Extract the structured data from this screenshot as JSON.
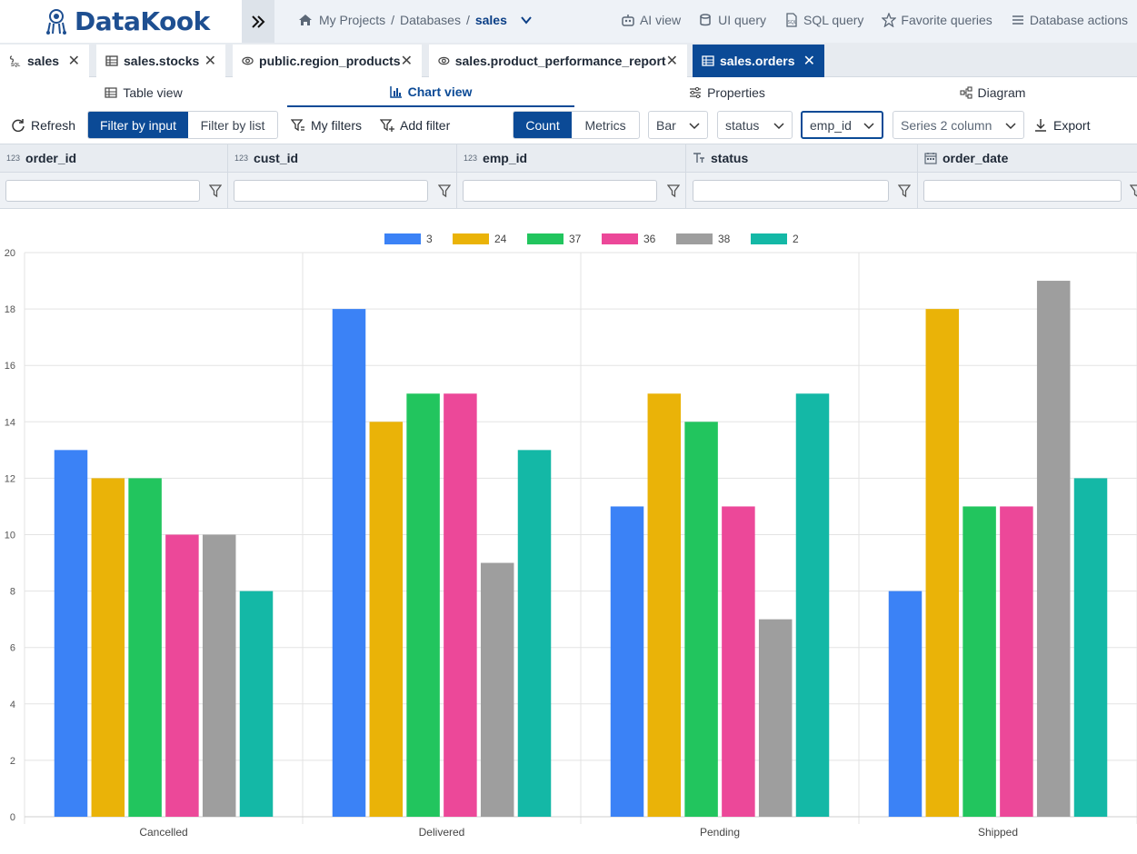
{
  "app": {
    "name": "DataKook"
  },
  "breadcrumb": {
    "projects": "My Projects",
    "databases": "Databases",
    "current": "sales"
  },
  "topnav": {
    "ai_view": "AI view",
    "ui_query": "UI query",
    "sql_query": "SQL query",
    "favorite_queries": "Favorite queries",
    "database_actions": "Database actions"
  },
  "tabs": [
    {
      "label": "sales",
      "icon": "sql-icon"
    },
    {
      "label": "sales.stocks",
      "icon": "table-icon"
    },
    {
      "label": "public.region_products",
      "icon": "view-icon"
    },
    {
      "label": "sales.product_performance_report",
      "icon": "view-icon"
    },
    {
      "label": "sales.orders",
      "icon": "table-icon",
      "active": true
    }
  ],
  "views": {
    "table": "Table view",
    "chart": "Chart view",
    "properties": "Properties",
    "diagram": "Diagram"
  },
  "toolbar": {
    "refresh": "Refresh",
    "filter_by_input": "Filter by input",
    "filter_by_list": "Filter by list",
    "my_filters": "My filters",
    "add_filter": "Add filter",
    "count": "Count",
    "metrics": "Metrics",
    "chart_type": "Bar",
    "x_column": "status",
    "series_column": "emp_id",
    "series2_placeholder": "Series 2 column",
    "export": "Export"
  },
  "columns": [
    {
      "name": "order_id",
      "type": "123"
    },
    {
      "name": "cust_id",
      "type": "123"
    },
    {
      "name": "emp_id",
      "type": "123"
    },
    {
      "name": "status",
      "type": "text"
    },
    {
      "name": "order_date",
      "type": "date"
    }
  ],
  "colors": {
    "accent": "#0b4a96",
    "logo": "#1e4f91"
  },
  "chart_data": {
    "type": "bar",
    "categories": [
      "Cancelled",
      "Delivered",
      "Pending",
      "Shipped"
    ],
    "series": [
      {
        "name": "3",
        "color": "#3b82f6",
        "values": [
          13,
          18,
          11,
          8
        ]
      },
      {
        "name": "24",
        "color": "#eab308",
        "values": [
          12,
          14,
          15,
          18
        ]
      },
      {
        "name": "37",
        "color": "#22c55e",
        "values": [
          12,
          15,
          14,
          11
        ]
      },
      {
        "name": "36",
        "color": "#ec4899",
        "values": [
          10,
          15,
          11,
          11
        ]
      },
      {
        "name": "38",
        "color": "#9e9e9e",
        "values": [
          10,
          9,
          7,
          19
        ]
      },
      {
        "name": "2",
        "color": "#14b8a6",
        "values": [
          8,
          13,
          15,
          12
        ]
      }
    ],
    "ylim": [
      0,
      20
    ],
    "yticks": [
      "0",
      "2",
      "4",
      "6",
      "8",
      "10",
      "12",
      "14",
      "16",
      "18",
      "20"
    ],
    "grid": true,
    "legend": "top-center"
  }
}
